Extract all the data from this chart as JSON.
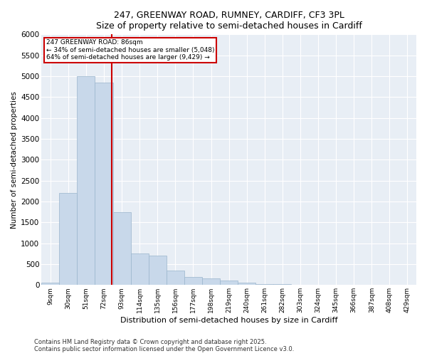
{
  "title1": "247, GREENWAY ROAD, RUMNEY, CARDIFF, CF3 3PL",
  "title2": "Size of property relative to semi-detached houses in Cardiff",
  "xlabel": "Distribution of semi-detached houses by size in Cardiff",
  "ylabel": "Number of semi-detached properties",
  "categories": [
    "9sqm",
    "30sqm",
    "51sqm",
    "72sqm",
    "93sqm",
    "114sqm",
    "135sqm",
    "156sqm",
    "177sqm",
    "198sqm",
    "219sqm",
    "240sqm",
    "261sqm",
    "282sqm",
    "303sqm",
    "324sqm",
    "345sqm",
    "366sqm",
    "387sqm",
    "408sqm",
    "429sqm"
  ],
  "values": [
    50,
    2200,
    5000,
    4850,
    1750,
    750,
    700,
    350,
    200,
    150,
    100,
    50,
    30,
    15,
    5,
    5,
    0,
    0,
    0,
    0,
    0
  ],
  "bar_color": "#c8d8ea",
  "bar_edge_color": "#9ab5cc",
  "vline_color": "#cc0000",
  "vline_pos": 3.42,
  "annotation_text": "247 GREENWAY ROAD: 86sqm\n← 34% of semi-detached houses are smaller (5,048)\n64% of semi-detached houses are larger (9,429) →",
  "annotation_box_color": "#cc0000",
  "ylim": [
    0,
    6000
  ],
  "yticks": [
    0,
    500,
    1000,
    1500,
    2000,
    2500,
    3000,
    3500,
    4000,
    4500,
    5000,
    5500,
    6000
  ],
  "background_color": "#e8eef5",
  "grid_color": "white",
  "footer1": "Contains HM Land Registry data © Crown copyright and database right 2025.",
  "footer2": "Contains public sector information licensed under the Open Government Licence v3.0."
}
